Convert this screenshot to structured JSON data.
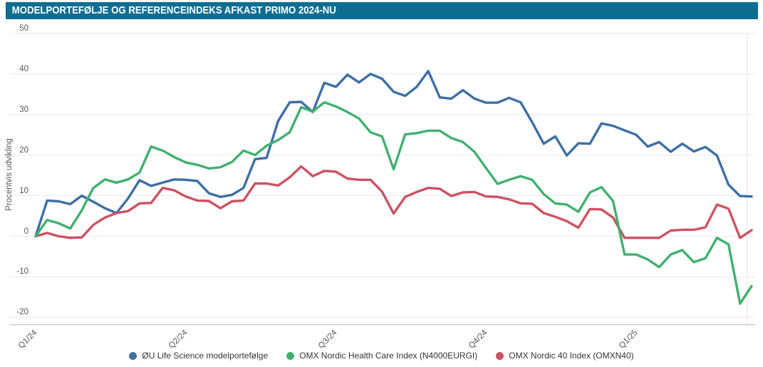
{
  "title": "MODELPORTEFØLJE OG REFERENCEINDEKS AFKAST PRIMO 2024-NU",
  "chart": {
    "y_axis_label": "Procentvis udvikling",
    "y_ticks": [
      50,
      40,
      30,
      20,
      10,
      0,
      -10,
      -20
    ],
    "x_ticks": [
      {
        "label": "Q1/24",
        "index": 0
      },
      {
        "label": "Q2/24",
        "index": 13
      },
      {
        "label": "Q3/24",
        "index": 26
      },
      {
        "label": "Q4/24",
        "index": 39
      },
      {
        "label": "Q1/25",
        "index": 52
      }
    ]
  },
  "legend": [
    {
      "label": "ØU Life Science modelportefølge"
    },
    {
      "label": "OMX Nordic Health Care Index (N4000EURGI)"
    },
    {
      "label": "OMX Nordic 40 Index (OMXN40)"
    }
  ],
  "colors": {
    "banner": "#0E6E92",
    "grid": "#E9E9E9",
    "axis_line": "#C9C9C9",
    "right_gridline": "#E3E3E3",
    "tick_text": "#565656",
    "legend_text": "#333333"
  },
  "chart_data": {
    "type": "line",
    "title": "Modelportefølje og referenceindeks afkast primo 2024-nu",
    "xlabel": "",
    "ylabel": "Procentvis udvikling",
    "ylim": [
      -20,
      50
    ],
    "x_unit": "uge (primo 2024 til nu)",
    "x_tick_labels": [
      "Q1/24",
      "Q2/24",
      "Q3/24",
      "Q4/24",
      "Q1/25"
    ],
    "grid": "horizontal",
    "legend_position": "bottom",
    "series": [
      {
        "name": "ØU Life Science modelportefølge",
        "color": "#3D6FA4",
        "values": [
          0,
          8.8,
          8.6,
          7.9,
          10.0,
          8.5,
          6.9,
          5.7,
          9.3,
          13.8,
          12.4,
          13.2,
          14.0,
          13.9,
          13.6,
          10.6,
          9.7,
          10.2,
          11.9,
          19.0,
          19.3,
          28.4,
          33.0,
          33.1,
          30.6,
          37.8,
          36.8,
          39.8,
          37.9,
          40.0,
          38.8,
          35.6,
          34.6,
          36.8,
          40.7,
          34.2,
          33.9,
          36.0,
          33.9,
          32.9,
          32.9,
          34.1,
          33.0,
          28.1,
          22.8,
          24.6,
          19.9,
          22.9,
          22.8,
          27.8,
          27.2,
          26.1,
          25.0,
          22.1,
          23.2,
          20.8,
          22.8,
          20.9,
          22.0,
          19.9,
          12.7,
          9.9,
          9.8
        ]
      },
      {
        "name": "OMX Nordic Health Care Index (N4000EURGI)",
        "color": "#41B06E",
        "values": [
          0,
          4.0,
          3.2,
          1.9,
          6.4,
          11.9,
          14.0,
          13.2,
          14.0,
          15.7,
          22.1,
          21.1,
          19.5,
          18.2,
          17.6,
          16.7,
          17.0,
          18.3,
          21.1,
          20.0,
          22.3,
          23.7,
          25.6,
          31.8,
          30.7,
          33.0,
          32.0,
          30.6,
          29.0,
          25.6,
          24.6,
          16.5,
          25.1,
          25.4,
          26.0,
          26.0,
          24.2,
          23.2,
          20.8,
          16.8,
          12.9,
          13.9,
          14.8,
          13.9,
          10.4,
          8.1,
          7.8,
          6.0,
          10.8,
          12.1,
          8.7,
          -4.5,
          -4.5,
          -5.7,
          -7.6,
          -4.5,
          -3.4,
          -6.4,
          -5.4,
          -0.4,
          -2.0,
          -16.6,
          -12.3
        ]
      },
      {
        "name": "OMX Nordic 40 Index (OMXN40)",
        "color": "#CC5263",
        "values": [
          0,
          0.8,
          0.0,
          -0.4,
          -0.3,
          2.8,
          4.6,
          5.7,
          6.2,
          8.1,
          8.2,
          11.9,
          11.3,
          9.8,
          8.8,
          8.7,
          6.9,
          8.6,
          8.8,
          13.0,
          13.0,
          12.5,
          14.5,
          17.2,
          14.8,
          16.1,
          15.9,
          14.2,
          13.9,
          13.9,
          11.0,
          5.6,
          9.7,
          10.9,
          11.9,
          11.7,
          9.9,
          10.8,
          10.9,
          9.8,
          9.7,
          9.1,
          8.1,
          8.0,
          5.7,
          4.8,
          3.7,
          2.1,
          6.7,
          6.6,
          4.6,
          -0.4,
          -0.4,
          -0.4,
          -0.4,
          1.4,
          1.6,
          1.6,
          2.2,
          7.8,
          6.8,
          -0.4,
          1.5
        ]
      }
    ]
  }
}
